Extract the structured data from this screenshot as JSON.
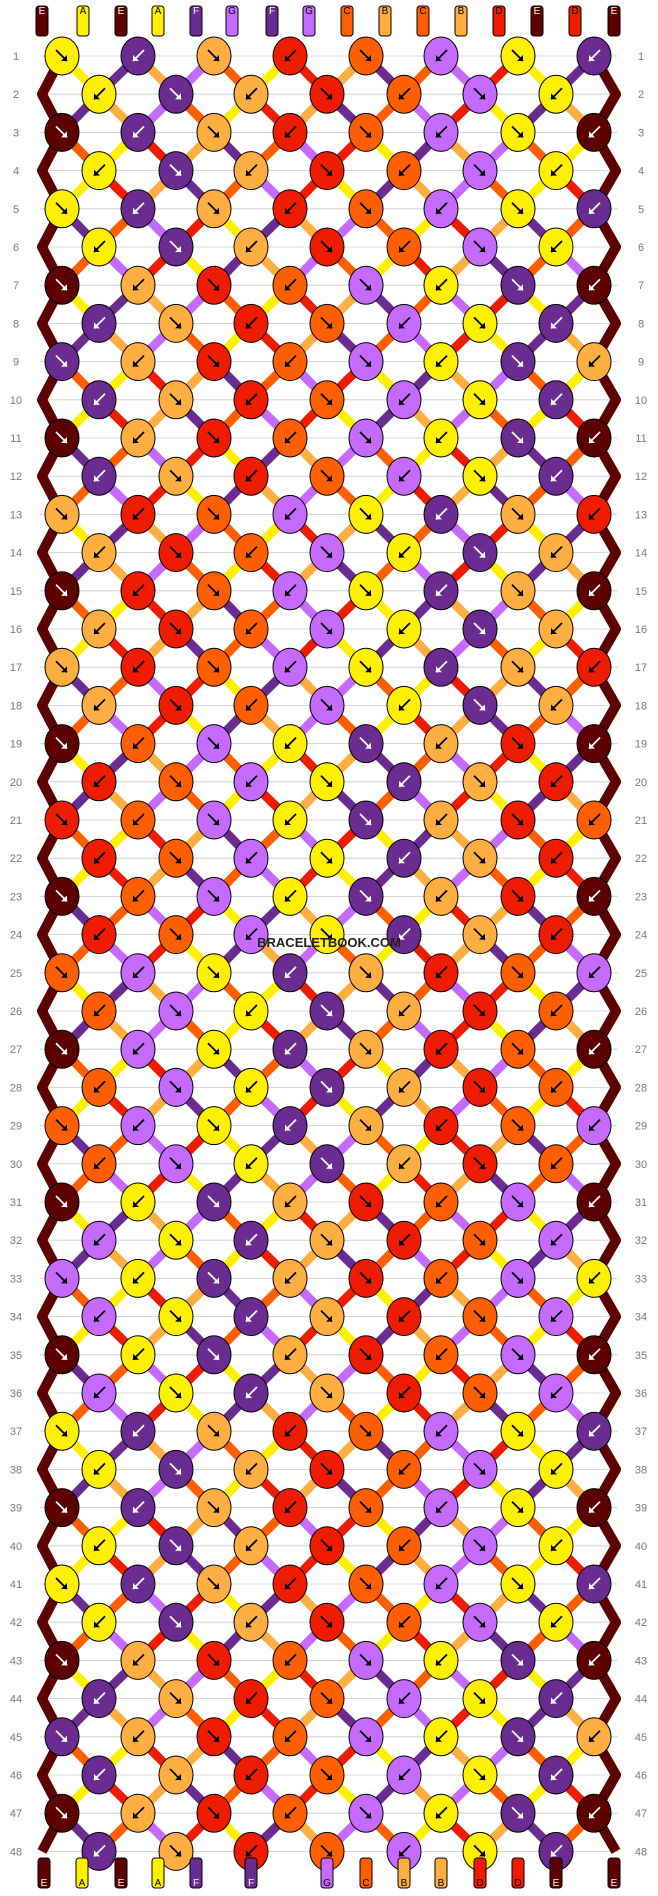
{
  "colors": {
    "A": "#ffef00",
    "B": "#ffae42",
    "C": "#ff5f00",
    "D": "#ee1c00",
    "E": "#5c0000",
    "F": "#6a2c91",
    "G": "#c66bff"
  },
  "strand_labels_top": [
    "E",
    "A",
    "E",
    "A",
    "F",
    "G",
    "F",
    "G",
    "C",
    "B",
    "C",
    "B",
    "D",
    "E",
    "D",
    "E"
  ],
  "strand_labels_bottom": [
    "E",
    "A",
    "E",
    "A",
    "F",
    "F",
    "G",
    "C",
    "B",
    "B",
    "D",
    "D",
    "E",
    "E"
  ],
  "row_labels": [
    "1",
    "2",
    "3",
    "4",
    "5",
    "6",
    "7",
    "8",
    "9",
    "10",
    "11",
    "12",
    "13",
    "14",
    "15",
    "16",
    "17",
    "18",
    "19",
    "20",
    "21",
    "22",
    "23",
    "24",
    "25",
    "26",
    "27",
    "28",
    "29",
    "30",
    "31",
    "32",
    "33",
    "34",
    "35",
    "36",
    "37",
    "38",
    "39",
    "40",
    "41",
    "42",
    "43",
    "44",
    "45",
    "46",
    "47",
    "48"
  ],
  "watermark": "BRACELETBOOK.COM"
}
